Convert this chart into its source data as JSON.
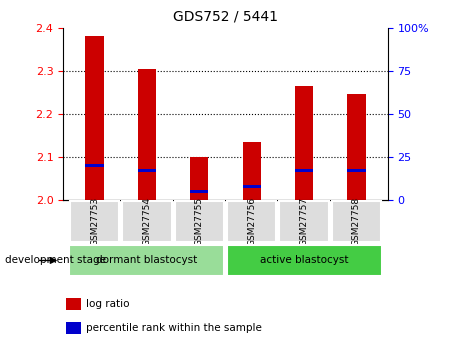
{
  "title": "GDS752 / 5441",
  "samples": [
    "GSM27753",
    "GSM27754",
    "GSM27755",
    "GSM27756",
    "GSM27757",
    "GSM27758"
  ],
  "log_ratio_values": [
    2.38,
    2.305,
    2.1,
    2.135,
    2.265,
    2.245
  ],
  "log_ratio_base": 2.0,
  "percentile_rank": [
    20,
    17,
    5,
    8,
    17,
    17
  ],
  "ylim_left": [
    2.0,
    2.4
  ],
  "ylim_right": [
    0,
    100
  ],
  "yticks_left": [
    2.0,
    2.1,
    2.2,
    2.3,
    2.4
  ],
  "yticks_right": [
    0,
    25,
    50,
    75,
    100
  ],
  "ytick_labels_right": [
    "0",
    "25",
    "50",
    "75",
    "100%"
  ],
  "bar_color": "#cc0000",
  "percentile_color": "#0000cc",
  "groups": [
    {
      "label": "dormant blastocyst",
      "indices": [
        0,
        1,
        2
      ],
      "color": "#99dd99"
    },
    {
      "label": "active blastocyst",
      "indices": [
        3,
        4,
        5
      ],
      "color": "#44cc44"
    }
  ],
  "dev_stage_label": "development stage",
  "legend_items": [
    {
      "label": "log ratio",
      "color": "#cc0000"
    },
    {
      "label": "percentile rank within the sample",
      "color": "#0000cc"
    }
  ],
  "bar_width": 0.35,
  "plot_bg": "#ffffff",
  "title_fontsize": 10,
  "tick_fontsize": 8,
  "label_fontsize": 8
}
